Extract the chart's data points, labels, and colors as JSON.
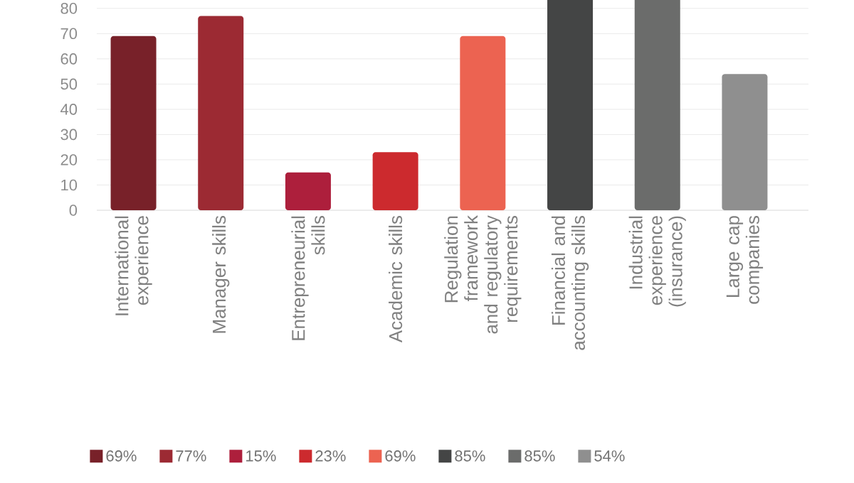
{
  "chart_data": {
    "type": "bar",
    "categories": [
      "International experience",
      "Manager skills",
      "Entrepreneurial skills",
      "Academic skills",
      "Regulation framework and regulatory requirements",
      "Financial and accounting skills",
      "Industrial experience (insurance)",
      "Large cap companies"
    ],
    "series": [
      {
        "name": "69%",
        "color": "#782129",
        "values": [
          69,
          null,
          null,
          null,
          null,
          null,
          null,
          null
        ]
      },
      {
        "name": "77%",
        "color": "#9c2a33",
        "values": [
          null,
          77,
          null,
          null,
          null,
          null,
          null,
          null
        ]
      },
      {
        "name": "15%",
        "color": "#ad1f3c",
        "values": [
          null,
          null,
          15,
          null,
          null,
          null,
          null,
          null
        ]
      },
      {
        "name": "23%",
        "color": "#cc2a2e",
        "values": [
          null,
          null,
          null,
          23,
          null,
          null,
          null,
          null
        ]
      },
      {
        "name": "69%",
        "color": "#ec6351",
        "values": [
          null,
          null,
          null,
          null,
          69,
          null,
          null,
          null
        ]
      },
      {
        "name": "85%",
        "color": "#444545",
        "values": [
          null,
          null,
          null,
          null,
          null,
          85,
          null,
          null
        ]
      },
      {
        "name": "85%",
        "color": "#6b6c6b",
        "values": [
          null,
          null,
          null,
          null,
          null,
          null,
          85,
          null
        ]
      },
      {
        "name": "54%",
        "color": "#8f8f8f",
        "values": [
          null,
          null,
          null,
          null,
          null,
          null,
          null,
          54
        ]
      }
    ],
    "ylim": [
      0,
      85
    ],
    "yticks": [
      0,
      10,
      20,
      30,
      40,
      50,
      60,
      70,
      80
    ],
    "grid": "y",
    "legend": "bottom"
  }
}
